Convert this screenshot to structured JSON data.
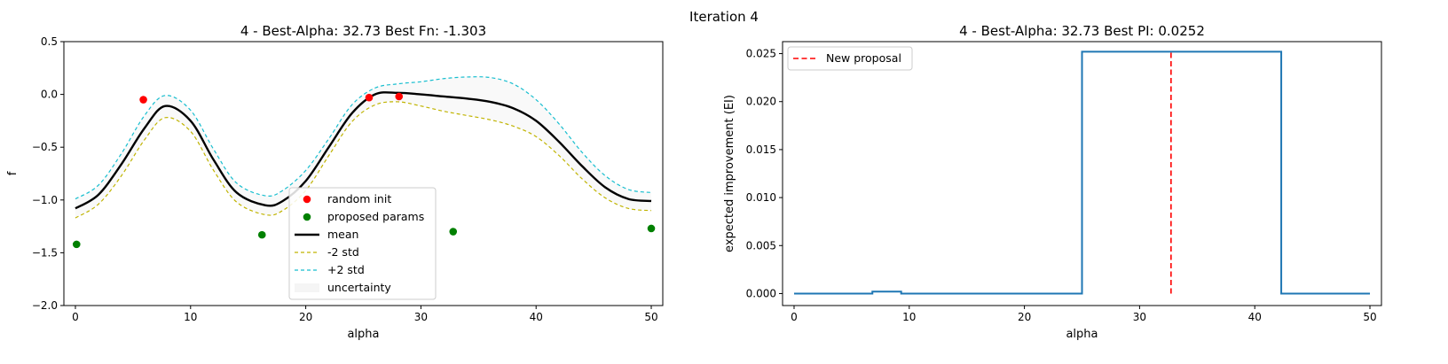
{
  "suptitle": "Iteration 4",
  "chart_data": [
    {
      "type": "line",
      "title": "4 - Best-Alpha: 32.73 Best Fn: -1.303",
      "xlabel": "alpha",
      "ylabel": "f",
      "xlim": [
        -1,
        51
      ],
      "ylim": [
        -2.0,
        0.5
      ],
      "xticks": [
        0,
        10,
        20,
        30,
        40,
        50
      ],
      "yticks": [
        -2.0,
        -1.5,
        -1.0,
        -0.5,
        0.0,
        0.5
      ],
      "ytick_labels": [
        "−2.0",
        "−1.5",
        "−1.0",
        "−0.5",
        "0.0",
        "0.5"
      ],
      "grid": false,
      "legend_position": "lower-center",
      "mean": {
        "name": "mean",
        "color": "#000000",
        "x": [
          0,
          2,
          4,
          6,
          7.8,
          10,
          12,
          14,
          16.5,
          18,
          20,
          22,
          24,
          26,
          28,
          30,
          32,
          34,
          36,
          38,
          40,
          42,
          44,
          46,
          48,
          50
        ],
        "y": [
          -1.08,
          -0.95,
          -0.66,
          -0.32,
          -0.11,
          -0.25,
          -0.62,
          -0.93,
          -1.05,
          -1.01,
          -0.82,
          -0.5,
          -0.18,
          0.0,
          0.015,
          0.0,
          -0.02,
          -0.04,
          -0.07,
          -0.13,
          -0.25,
          -0.45,
          -0.68,
          -0.88,
          -0.99,
          -1.01
        ]
      },
      "lower": {
        "name": "-2 std",
        "color": "#c0b400",
        "x": [
          0,
          2,
          4,
          6,
          7.8,
          10,
          12,
          14,
          16.5,
          18,
          20,
          22,
          24,
          26,
          28,
          30,
          32,
          34,
          36,
          38,
          40,
          42,
          44,
          46,
          48,
          50
        ],
        "y": [
          -1.17,
          -1.04,
          -0.77,
          -0.43,
          -0.22,
          -0.35,
          -0.72,
          -1.02,
          -1.14,
          -1.1,
          -0.91,
          -0.58,
          -0.26,
          -0.1,
          -0.07,
          -0.11,
          -0.16,
          -0.2,
          -0.24,
          -0.3,
          -0.4,
          -0.58,
          -0.8,
          -0.98,
          -1.08,
          -1.1
        ]
      },
      "upper": {
        "name": "+2 std",
        "color": "#17becf",
        "x": [
          0,
          2,
          4,
          6,
          7.8,
          10,
          12,
          14,
          16.5,
          18,
          20,
          22,
          24,
          26,
          28,
          30,
          32,
          34,
          36,
          38,
          40,
          42,
          44,
          46,
          48,
          50
        ],
        "y": [
          -0.99,
          -0.86,
          -0.56,
          -0.2,
          -0.01,
          -0.15,
          -0.52,
          -0.84,
          -0.96,
          -0.91,
          -0.72,
          -0.42,
          -0.1,
          0.06,
          0.1,
          0.12,
          0.15,
          0.165,
          0.16,
          0.1,
          -0.05,
          -0.28,
          -0.55,
          -0.77,
          -0.9,
          -0.93
        ]
      },
      "band": {
        "name": "uncertainty",
        "color": "#d9d9d9"
      },
      "random_init": {
        "name": "random init",
        "color": "#ff0000",
        "x": [
          5.9,
          25.5,
          28.1
        ],
        "y": [
          -0.05,
          -0.03,
          -0.02
        ]
      },
      "proposed": {
        "name": "proposed params",
        "color": "#008000",
        "x": [
          0.1,
          16.2,
          32.8,
          50.0
        ],
        "y": [
          -1.42,
          -1.33,
          -1.3,
          -1.27
        ]
      }
    },
    {
      "type": "line",
      "title": "4 - Best-Alpha: 32.73 Best PI: 0.0252",
      "xlabel": "alpha",
      "ylabel": "expected improvement (EI)",
      "xlim": [
        -1,
        51
      ],
      "ylim": [
        -0.00125,
        0.02625
      ],
      "xticks": [
        0,
        10,
        20,
        30,
        40,
        50
      ],
      "yticks": [
        0.0,
        0.005,
        0.01,
        0.015,
        0.02,
        0.025
      ],
      "ytick_labels": [
        "0.000",
        "0.005",
        "0.010",
        "0.015",
        "0.020",
        "0.025"
      ],
      "grid": false,
      "legend_position": "top-left",
      "ei": {
        "color": "#1f77b4",
        "x": [
          0,
          6.8,
          6.8,
          9.3,
          9.3,
          25.0,
          25.0,
          42.3,
          42.3,
          50
        ],
        "y": [
          0.0,
          0.0,
          0.0002,
          0.0002,
          0.0,
          0.0,
          0.0252,
          0.0252,
          0.0,
          0.0
        ]
      },
      "proposal": {
        "name": "New proposal",
        "color": "#ff0000",
        "x": 32.73,
        "y": [
          0.0,
          0.0252
        ]
      }
    }
  ]
}
